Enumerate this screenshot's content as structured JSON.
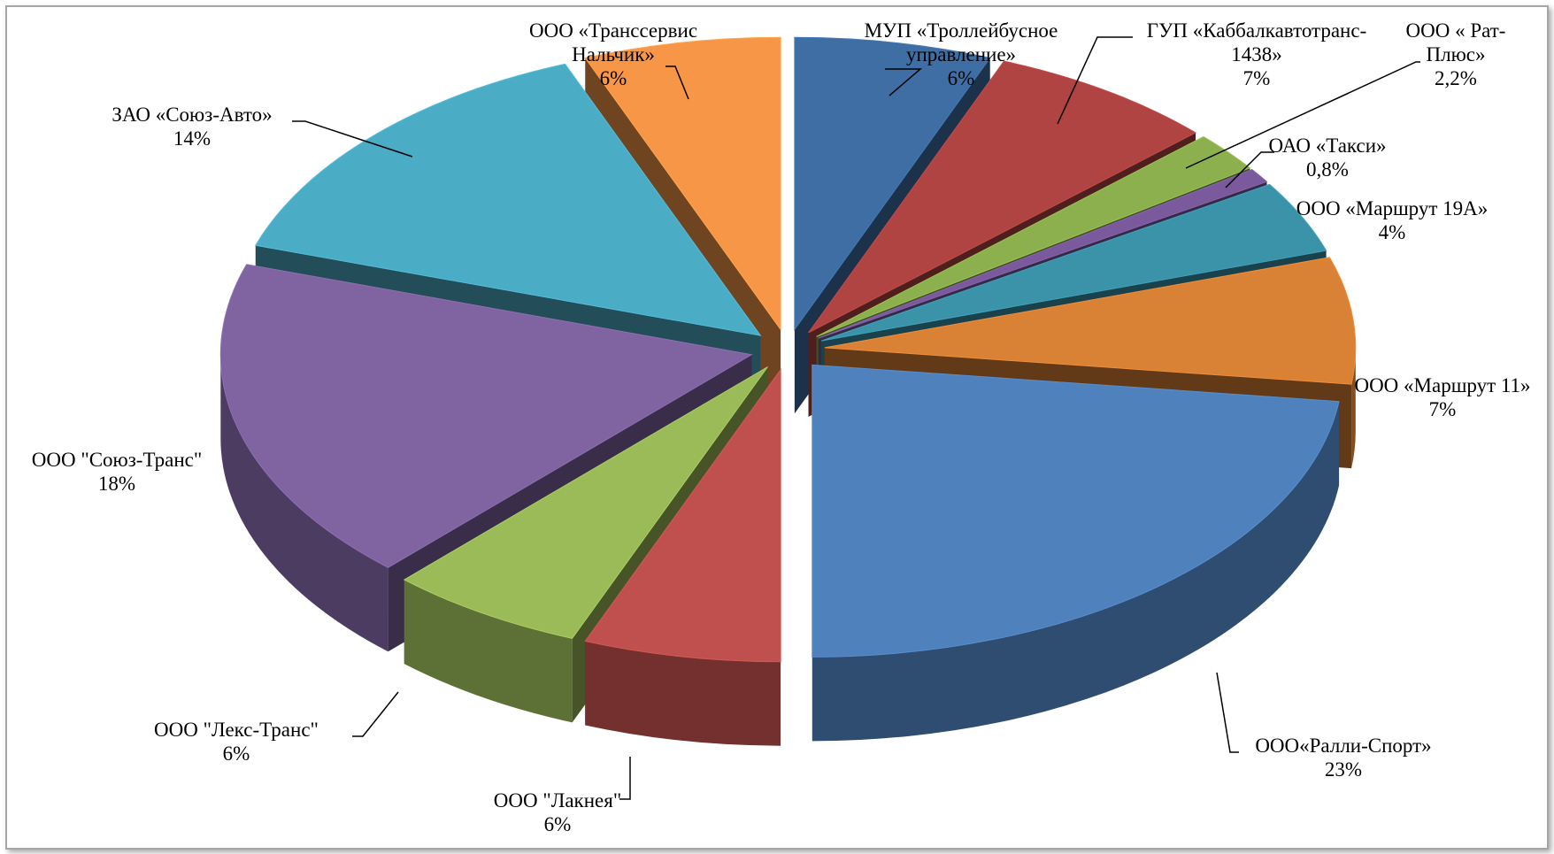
{
  "chart_data": {
    "type": "pie",
    "title": "",
    "style": "3d-exploded",
    "slices": [
      {
        "name": "МУП «Троллейбусное управление»",
        "label_lines": [
          "МУП «Троллейбусное",
          "управление»"
        ],
        "pct_label": "6%",
        "value": 6,
        "color": "#3f6ea4"
      },
      {
        "name": "ГУП «Каббалкавтотранс-1438»",
        "label_lines": [
          "ГУП «Каббалкавтотранс-",
          "1438»"
        ],
        "pct_label": "7%",
        "value": 7,
        "color": "#b04442"
      },
      {
        "name": "ООО « Рат-Плюс»",
        "label_lines": [
          "ООО « Рат-",
          "Плюс»"
        ],
        "pct_label": "2,2%",
        "value": 2.2,
        "color": "#8db04e"
      },
      {
        "name": "ОАО «Такси»",
        "label_lines": [
          "ОАО «Такси»"
        ],
        "pct_label": "0,8%",
        "value": 0.8,
        "color": "#7a5a9c"
      },
      {
        "name": "ООО «Маршрут 19А»",
        "label_lines": [
          "ООО «Маршрут 19А»"
        ],
        "pct_label": "4%",
        "value": 4,
        "color": "#3a93a9"
      },
      {
        "name": "ООО «Маршрут 11»",
        "label_lines": [
          "ООО «Маршрут 11»"
        ],
        "pct_label": "7%",
        "value": 7,
        "color": "#d98134"
      },
      {
        "name": "ООО«Ралли-Спорт»",
        "label_lines": [
          "ООО«Ралли-Спорт»"
        ],
        "pct_label": "23%",
        "value": 23,
        "color": "#4f81bd"
      },
      {
        "name": "ООО \"Лакнея\"",
        "label_lines": [
          "ООО \"Лакнея\""
        ],
        "pct_label": "6%",
        "value": 6,
        "color": "#c0504d"
      },
      {
        "name": "ООО \"Лекс-Транс\"",
        "label_lines": [
          "ООО \"Лекс-Транс\""
        ],
        "pct_label": "6%",
        "value": 6,
        "color": "#9bbb59"
      },
      {
        "name": "ООО \"Союз-Транс\"",
        "label_lines": [
          "ООО \"Союз-Транс\""
        ],
        "pct_label": "18%",
        "value": 18,
        "color": "#8064a2"
      },
      {
        "name": "ЗАО «Союз-Авто»",
        "label_lines": [
          "ЗАО «Союз-Авто»"
        ],
        "pct_label": "14%",
        "value": 14,
        "color": "#4bacc6"
      },
      {
        "name": "ООО «Транссервис Нальчик»",
        "label_lines": [
          "ООО «Транссервис",
          "Нальчик»"
        ],
        "pct_label": "6%",
        "value": 6,
        "color": "#f79646"
      }
    ],
    "legend": "none",
    "data_labels": "outside-with-leader-lines"
  }
}
